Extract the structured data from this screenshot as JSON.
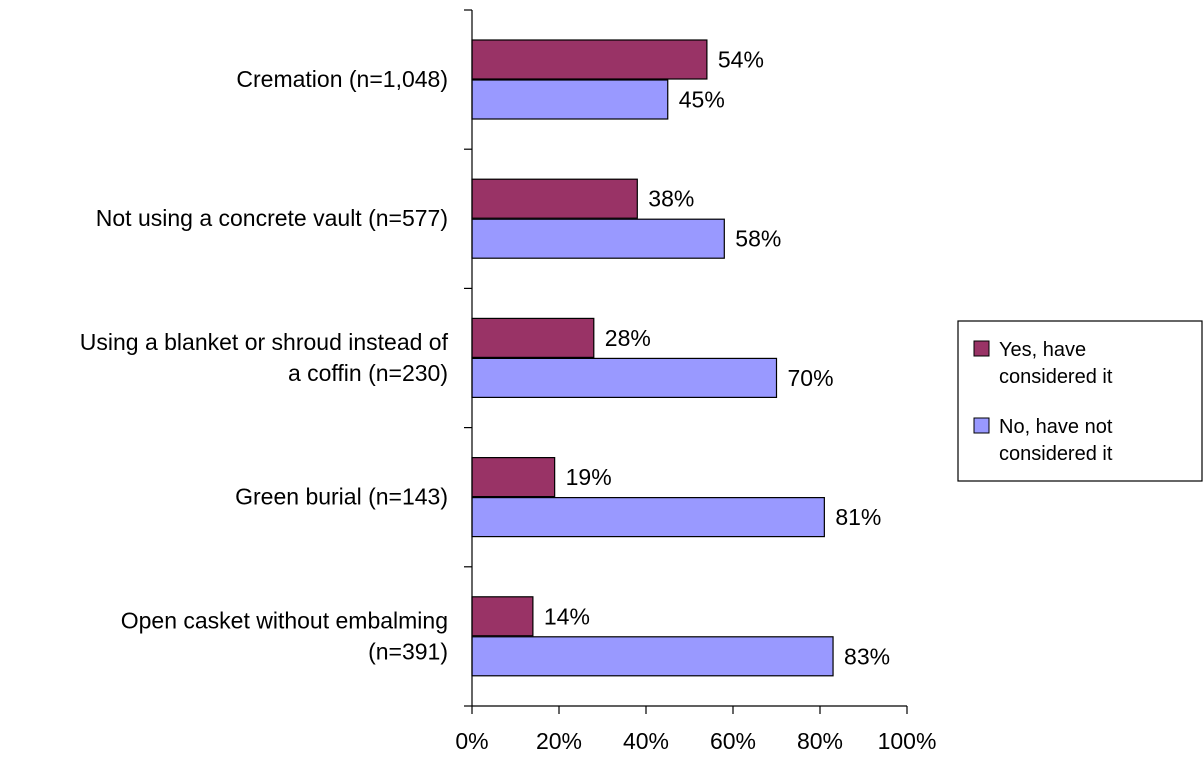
{
  "chart_data": {
    "type": "bar",
    "orientation": "horizontal",
    "title": "",
    "xlabel": "",
    "ylabel": "",
    "xlim": [
      0,
      100
    ],
    "categories": [
      [
        "Cremation (n=1,048)"
      ],
      [
        "Not using a concrete vault (n=577)"
      ],
      [
        "Using a blanket or shroud instead of",
        "a coffin (n=230)"
      ],
      [
        "Green burial (n=143)"
      ],
      [
        "Open casket without embalming",
        "(n=391)"
      ]
    ],
    "series": [
      {
        "name": "Yes, have considered it",
        "color": "#993366",
        "values": [
          54,
          38,
          28,
          19,
          14
        ],
        "labels": [
          "54%",
          "38%",
          "28%",
          "19%",
          "14%"
        ]
      },
      {
        "name": "No, have not considered it",
        "color": "#9999FF",
        "values": [
          45,
          58,
          70,
          81,
          83
        ],
        "labels": [
          "45%",
          "58%",
          "70%",
          "81%",
          "83%"
        ]
      }
    ],
    "x_ticks": [
      "0%",
      "20%",
      "40%",
      "60%",
      "80%",
      "100%"
    ],
    "legend": {
      "position": "right",
      "entries": [
        [
          "Yes, have",
          "considered it"
        ],
        [
          "No, have not",
          "considered it"
        ]
      ]
    },
    "grid": false
  }
}
